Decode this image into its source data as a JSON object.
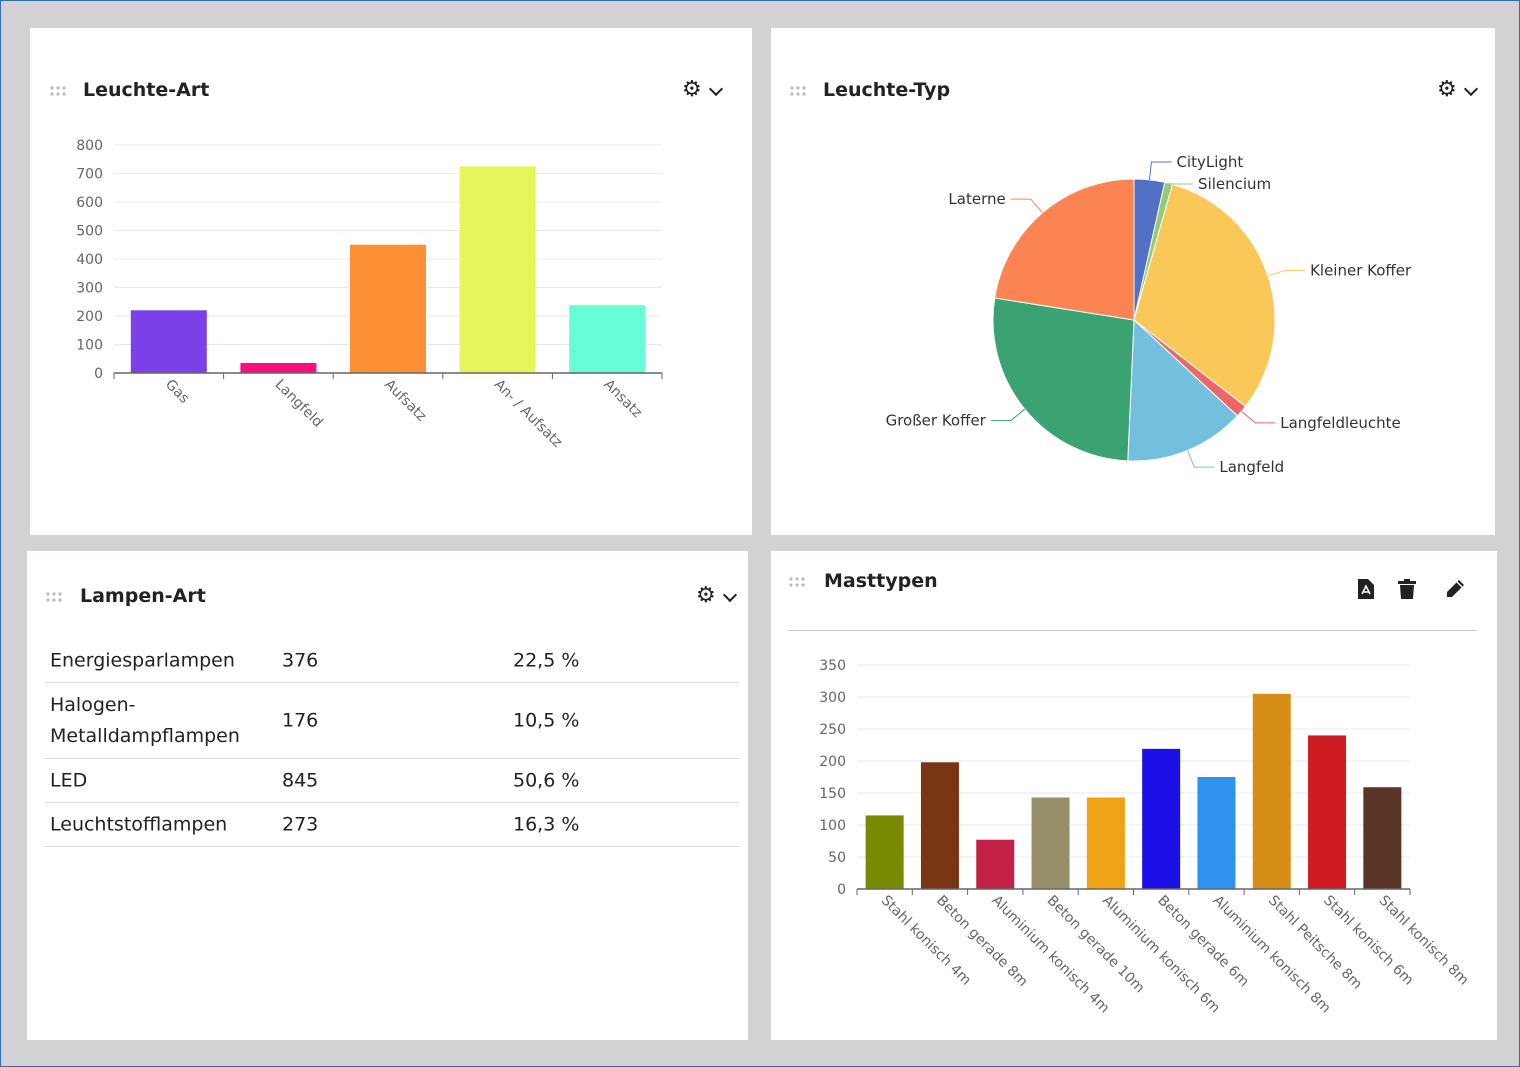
{
  "panels": {
    "leuchte_art": {
      "title": "Leuchte-Art"
    },
    "leuchte_typ": {
      "title": "Leuchte-Typ"
    },
    "lampen_art": {
      "title": "Lampen-Art",
      "rows": [
        {
          "name": "Energiesparlampen",
          "count": "376",
          "percent": "22,5 %"
        },
        {
          "name": "Halogen-\nMetalldampflampen",
          "count": "176",
          "percent": "10,5 %"
        },
        {
          "name": "LED",
          "count": "845",
          "percent": "50,6 %"
        },
        {
          "name": "Leuchtstofflampen",
          "count": "273",
          "percent": "16,3 %"
        }
      ]
    },
    "masttypen": {
      "title": "Masttypen",
      "icons": [
        "pdf-icon",
        "trash-icon",
        "pencil-icon"
      ]
    }
  },
  "chart_data": [
    {
      "type": "bar",
      "title": "Leuchte-Art",
      "categories": [
        "Gas",
        "Langfeld",
        "Aufsatz",
        "An- / Aufsatz",
        "Ansatz"
      ],
      "values": [
        220,
        35,
        450,
        725,
        238
      ],
      "colors": [
        "#7b40e8",
        "#fb0f7c",
        "#fd8f35",
        "#e6f55a",
        "#67fdd6"
      ],
      "yticks": [
        0,
        100,
        200,
        300,
        400,
        500,
        600,
        700,
        800
      ],
      "ylim": [
        0,
        800
      ],
      "grid": true
    },
    {
      "type": "pie",
      "title": "Leuchte-Typ",
      "categories": [
        "CityLight",
        "Silencium",
        "Kleiner Koffer",
        "Langfeldleuchte",
        "Langfeld",
        "Großer Koffer",
        "Laterne"
      ],
      "values": [
        3.5,
        0.9,
        31.1,
        1.4,
        13.8,
        26.8,
        22.5
      ],
      "colors": [
        "#5470c6",
        "#91cc75",
        "#fac858",
        "#ee6666",
        "#73c0de",
        "#3ba272",
        "#fc8452"
      ]
    },
    {
      "type": "bar",
      "title": "Masttypen",
      "categories": [
        "Stahl konisch 4m",
        "Beton gerade 8m",
        "Aluminium konisch 4m",
        "Beton gerade 10m",
        "Aluminium konisch 6m",
        "Beton gerade 6m",
        "Aluminium konisch 8m",
        "Stahl Peitsche 8m",
        "Stahl konisch 6m",
        "Stahl konisch 8m"
      ],
      "values": [
        115,
        198,
        77,
        143,
        143,
        219,
        175,
        305,
        240,
        159
      ],
      "colors": [
        "#788a02",
        "#7a3512",
        "#c22047",
        "#978f69",
        "#f0a314",
        "#1c10e6",
        "#2f92ee",
        "#d68e16",
        "#cf1c22",
        "#5b3428"
      ],
      "yticks": [
        0,
        50,
        100,
        150,
        200,
        250,
        300,
        350
      ],
      "ylim": [
        0,
        350
      ],
      "grid": true
    }
  ]
}
